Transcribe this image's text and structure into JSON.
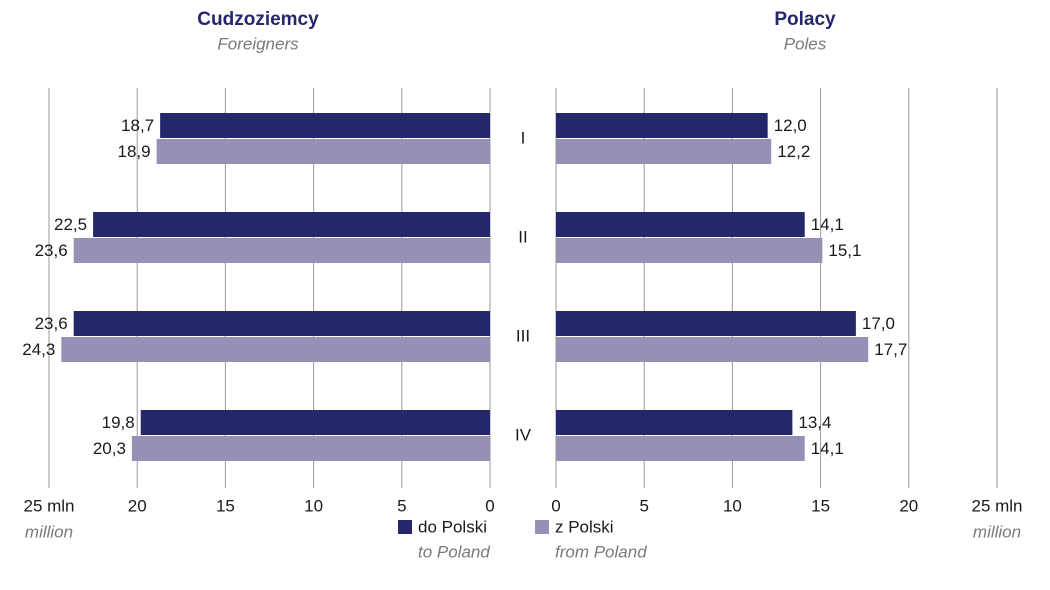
{
  "chart_data": {
    "type": "bar",
    "orientation": "horizontal",
    "categories": [
      "I",
      "II",
      "III",
      "IV"
    ],
    "series": [
      {
        "name": "do Polski",
        "translation": "to Poland",
        "color": "#24286b"
      },
      {
        "name": "z Polski",
        "translation": "from Poland",
        "color": "#9491b5"
      }
    ],
    "grid": true,
    "panels": [
      {
        "title": "Cudzoziemcy",
        "subtitle": "Foreigners",
        "reversed": true,
        "xlim": [
          0,
          25
        ],
        "xticks": [
          0,
          5,
          10,
          15,
          20,
          {
            "value": 25,
            "label": "25 mln"
          }
        ],
        "xlabel": "million",
        "series": [
          {
            "values": [
              18.7,
              22.5,
              23.6,
              19.8
            ],
            "value_labels": [
              "18,7",
              "22,5",
              "23,6",
              "19,8"
            ]
          },
          {
            "values": [
              18.9,
              23.6,
              24.3,
              20.3
            ],
            "value_labels": [
              "18,9",
              "23,6",
              "24,3",
              "20,3"
            ]
          }
        ]
      },
      {
        "title": "Polacy",
        "subtitle": "Poles",
        "reversed": false,
        "xlim": [
          0,
          25
        ],
        "xticks": [
          0,
          5,
          10,
          15,
          20,
          {
            "value": 25,
            "label": "25 mln"
          }
        ],
        "xlabel": "million",
        "series": [
          {
            "values": [
              12.0,
              14.1,
              17.0,
              13.4
            ],
            "value_labels": [
              "12,0",
              "14,1",
              "17,0",
              "13,4"
            ]
          },
          {
            "values": [
              12.2,
              15.1,
              17.7,
              14.1
            ],
            "value_labels": [
              "12,2",
              "15,1",
              "17,7",
              "14,1"
            ]
          }
        ]
      }
    ]
  }
}
